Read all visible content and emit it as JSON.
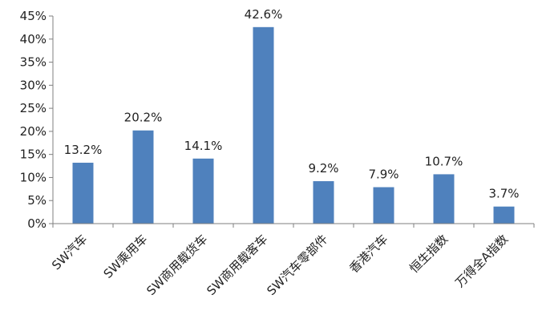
{
  "chart_data": {
    "type": "bar",
    "title": "",
    "xlabel": "",
    "ylabel": "",
    "categories": [
      "SW汽车",
      "SW乘用车",
      "SW商用载货车",
      "SW商用载客车",
      "SW汽车零部件",
      "香港汽车",
      "恒生指数",
      "万得全A指数"
    ],
    "values": [
      13.2,
      20.2,
      14.1,
      42.6,
      9.2,
      7.9,
      10.7,
      3.7
    ],
    "data_labels": [
      "13.2%",
      "20.2%",
      "14.1%",
      "42.6%",
      "9.2%",
      "7.9%",
      "10.7%",
      "3.7%"
    ],
    "ylim": [
      0,
      45
    ],
    "yticks": [
      0,
      5,
      10,
      15,
      20,
      25,
      30,
      35,
      40,
      45
    ],
    "ytick_labels": [
      "0%",
      "5%",
      "10%",
      "15%",
      "20%",
      "25%",
      "30%",
      "35%",
      "40%",
      "45%"
    ],
    "grid": false,
    "legend": "none",
    "colors": {
      "bar": "#4F81BD",
      "axis": "#7F7F7F",
      "text": "#222222"
    }
  }
}
